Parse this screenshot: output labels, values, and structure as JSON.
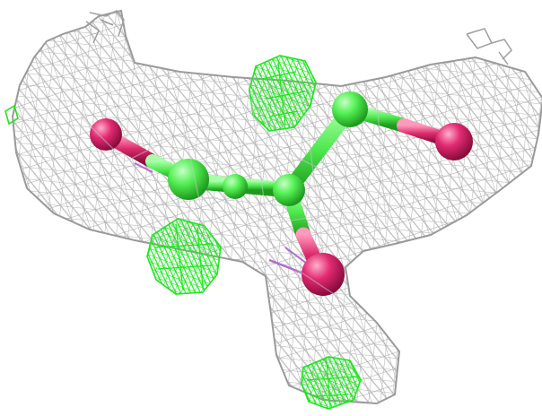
{
  "scene": {
    "background_color": "#ffffff",
    "mesh_color": "#b9b9b9",
    "mesh_dark_color": "#8e8e8e",
    "difference_density_color": "#22ee22",
    "carbon_color": "#4ef04e",
    "oxygen_color": "#e0266c",
    "bond_accent_color": "#b36ad0"
  },
  "molecule": {
    "atoms": [
      {
        "element": "O"
      },
      {
        "element": "C"
      },
      {
        "element": "C"
      },
      {
        "element": "C"
      },
      {
        "element": "O"
      },
      {
        "element": "C"
      },
      {
        "element": "O"
      }
    ]
  },
  "icons": {
    "electron_density_mesh": "mesh-surface-icon",
    "difference_density_blobs": "density-blob-icon"
  }
}
